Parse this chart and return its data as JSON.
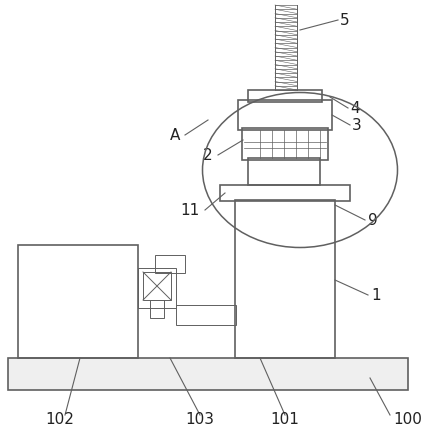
{
  "bg_color": "#ffffff",
  "line_color": "#606060",
  "label_color": "#222222",
  "figsize": [
    4.21,
    4.43
  ],
  "dpi": 100
}
